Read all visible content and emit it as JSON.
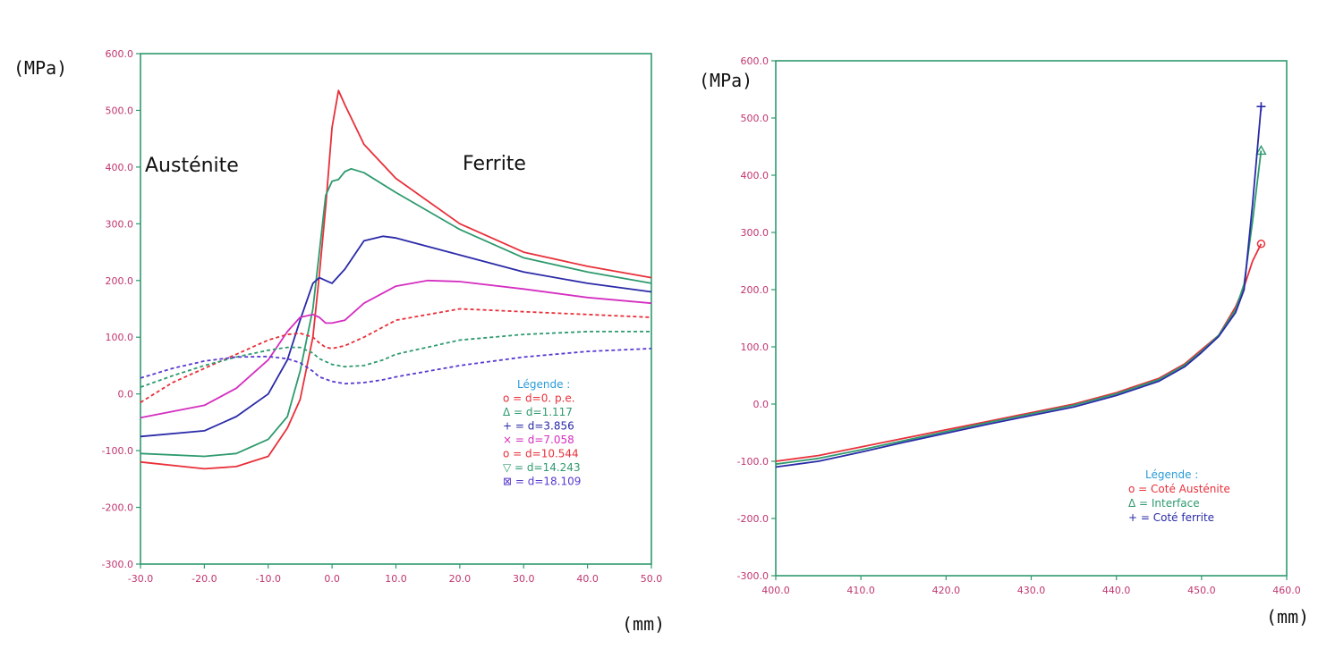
{
  "chart_data": [
    {
      "type": "line",
      "ylabel": "(MPa)",
      "xlabel": "(mm)",
      "xlim": [
        -30,
        50
      ],
      "ylim": [
        -300,
        600
      ],
      "xticks": [
        "-30.0",
        "-20.0",
        "-10.0",
        "0.0",
        "10.0",
        "20.0",
        "30.0",
        "40.0",
        "50.0"
      ],
      "yticks": [
        "600.0",
        "500.0",
        "400.0",
        "300.0",
        "200.0",
        "100.0",
        "0.0",
        "-100.0",
        "-200.0",
        "-300.0"
      ],
      "annotations": [
        {
          "text": "Austénite",
          "x": -28,
          "y": 390
        },
        {
          "text": "Ferrite",
          "x": 21,
          "y": 393
        }
      ],
      "legend": {
        "title": "Légende :",
        "position": "lower-right",
        "entries": [
          "o = d=0. p.e.",
          "Δ = d=1.117",
          "+ = d=3.856",
          "× = d=7.058",
          "o = d=10.544",
          "▽ = d=14.243",
          "⊠ = d=18.109"
        ]
      },
      "series": [
        {
          "name": "d=0. p.e.",
          "color": "#e8303a",
          "dashed": false,
          "x": [
            -30,
            -20,
            -15,
            -10,
            -7,
            -5,
            -3,
            -2,
            -1,
            0,
            1,
            2,
            5,
            10,
            20,
            30,
            40,
            50
          ],
          "y": [
            -120,
            -132,
            -128,
            -110,
            -60,
            -10,
            100,
            210,
            330,
            470,
            535,
            510,
            440,
            380,
            300,
            250,
            225,
            205
          ]
        },
        {
          "name": "d=1.117",
          "color": "#2e9a6e",
          "dashed": false,
          "x": [
            -30,
            -20,
            -15,
            -10,
            -7,
            -5,
            -3,
            -2,
            -1,
            0,
            1,
            2,
            3,
            5,
            10,
            20,
            30,
            40,
            50
          ],
          "y": [
            -105,
            -110,
            -105,
            -80,
            -40,
            40,
            150,
            250,
            350,
            375,
            378,
            392,
            397,
            390,
            355,
            290,
            240,
            215,
            195
          ]
        },
        {
          "name": "d=3.856",
          "color": "#2a2aa8",
          "dashed": false,
          "x": [
            -30,
            -20,
            -15,
            -10,
            -7,
            -5,
            -3,
            -2,
            -1,
            0,
            2,
            5,
            8,
            10,
            20,
            30,
            40,
            50
          ],
          "y": [
            -75,
            -65,
            -40,
            0,
            60,
            130,
            195,
            205,
            200,
            195,
            220,
            270,
            278,
            275,
            245,
            215,
            195,
            180
          ]
        },
        {
          "name": "d=7.058",
          "color": "#d42fc0",
          "dashed": false,
          "x": [
            -30,
            -20,
            -15,
            -10,
            -7,
            -5,
            -3,
            -2,
            -1,
            0,
            2,
            5,
            10,
            15,
            20,
            30,
            40,
            50
          ],
          "y": [
            -42,
            -20,
            10,
            60,
            110,
            135,
            140,
            135,
            125,
            125,
            130,
            160,
            190,
            200,
            198,
            185,
            170,
            160
          ]
        },
        {
          "name": "d=10.544",
          "color": "#e8303a",
          "dashed": true,
          "x": [
            -30,
            -25,
            -20,
            -15,
            -10,
            -7,
            -5,
            -3,
            -2,
            -1,
            0,
            2,
            5,
            10,
            20,
            30,
            40,
            50
          ],
          "y": [
            -15,
            20,
            45,
            70,
            95,
            105,
            107,
            100,
            90,
            82,
            80,
            85,
            100,
            130,
            150,
            145,
            140,
            135
          ]
        },
        {
          "name": "d=14.243",
          "color": "#2e9a6e",
          "dashed": true,
          "x": [
            -30,
            -25,
            -20,
            -15,
            -10,
            -7,
            -5,
            -3,
            -2,
            0,
            2,
            5,
            8,
            10,
            20,
            30,
            40,
            50
          ],
          "y": [
            12,
            32,
            50,
            65,
            77,
            82,
            82,
            72,
            62,
            52,
            48,
            50,
            60,
            70,
            95,
            105,
            110,
            110
          ]
        },
        {
          "name": "d=18.109",
          "color": "#5a3ad0",
          "dashed": true,
          "x": [
            -30,
            -25,
            -20,
            -15,
            -10,
            -7,
            -5,
            -3,
            -2,
            0,
            2,
            5,
            8,
            10,
            20,
            30,
            40,
            50
          ],
          "y": [
            28,
            45,
            58,
            65,
            66,
            62,
            55,
            40,
            30,
            22,
            18,
            20,
            25,
            30,
            50,
            65,
            75,
            80
          ]
        }
      ]
    },
    {
      "type": "line",
      "ylabel": "(MPa)",
      "xlabel": "(mm)",
      "xlim": [
        400,
        460
      ],
      "ylim": [
        -300,
        600
      ],
      "xticks": [
        "400.0",
        "410.0",
        "420.0",
        "430.0",
        "440.0",
        "450.0",
        "460.0"
      ],
      "yticks": [
        "600.0",
        "500.0",
        "400.0",
        "300.0",
        "200.0",
        "100.0",
        "0.0",
        "-100.0",
        "-200.0",
        "-300.0"
      ],
      "legend": {
        "title": "Légende :",
        "position": "lower-right",
        "entries": [
          "o = Coté Austénite",
          "Δ = Interface",
          "+ = Coté ferrite"
        ]
      },
      "series": [
        {
          "name": "Coté Austénite",
          "color": "#e8303a",
          "marker": "circle",
          "x": [
            400,
            405,
            410,
            415,
            420,
            425,
            430,
            435,
            440,
            445,
            448,
            450,
            452,
            454,
            455,
            456,
            457
          ],
          "y": [
            -100,
            -90,
            -75,
            -60,
            -45,
            -30,
            -15,
            0,
            20,
            45,
            70,
            95,
            120,
            170,
            205,
            250,
            280
          ]
        },
        {
          "name": "Interface",
          "color": "#2e9a6e",
          "marker": "triangle",
          "x": [
            400,
            405,
            410,
            415,
            420,
            425,
            430,
            435,
            440,
            445,
            448,
            450,
            452,
            454,
            455,
            456,
            457
          ],
          "y": [
            -105,
            -95,
            -80,
            -64,
            -48,
            -32,
            -17,
            -2,
            18,
            43,
            68,
            92,
            120,
            165,
            210,
            320,
            443
          ]
        },
        {
          "name": "Coté ferrite",
          "color": "#2a2aa8",
          "marker": "plus",
          "x": [
            400,
            405,
            410,
            415,
            420,
            425,
            430,
            435,
            440,
            445,
            448,
            450,
            452,
            454,
            455,
            456,
            457
          ],
          "y": [
            -110,
            -100,
            -84,
            -67,
            -51,
            -35,
            -20,
            -5,
            15,
            40,
            65,
            90,
            118,
            160,
            200,
            350,
            520
          ]
        }
      ]
    }
  ]
}
